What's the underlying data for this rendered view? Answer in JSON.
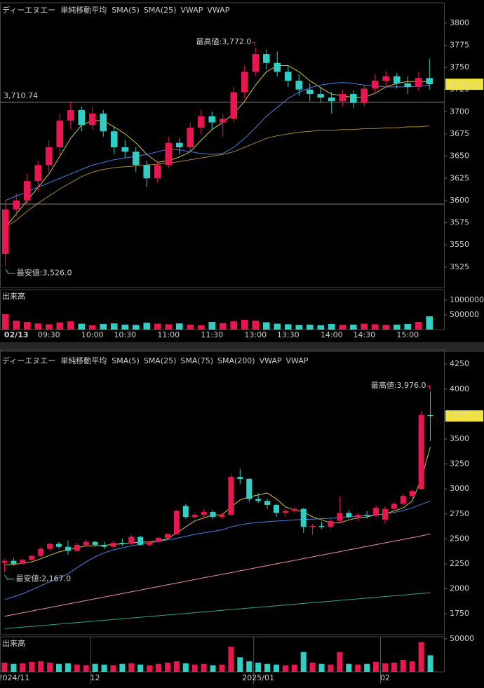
{
  "chart_data": [
    {
      "type": "candlestick",
      "title": "ディーエヌエー",
      "subtitle": "単純移動平均",
      "up_color": "#e8174f",
      "down_color": "#2fcfc6",
      "categories": [
        null,
        "02/13",
        null,
        null,
        "09:30",
        null,
        null,
        null,
        "10:00",
        null,
        null,
        "10:30",
        null,
        null,
        null,
        "11:00",
        null,
        null,
        null,
        "11:30",
        null,
        null,
        null,
        "13:00",
        null,
        null,
        "13:30",
        null,
        null,
        null,
        "14:00",
        null,
        null,
        "14:30",
        null,
        null,
        null,
        "15:00",
        null,
        null
      ],
      "open": [
        3540,
        3590,
        3600,
        3622,
        3640,
        3660,
        3690,
        3702,
        3685,
        3698,
        3678,
        3660,
        3655,
        3640,
        3625,
        3640,
        3665,
        3660,
        3682,
        3695,
        3688,
        3692,
        3722,
        3745,
        3765,
        3755,
        3745,
        3735,
        3725,
        3720,
        3716,
        3712,
        3720,
        3710,
        3726,
        3735,
        3740,
        3732,
        3728,
        3738
      ],
      "high": [
        3600,
        3608,
        3630,
        3645,
        3668,
        3698,
        3712,
        3706,
        3705,
        3702,
        3683,
        3668,
        3660,
        3645,
        3645,
        3672,
        3670,
        3688,
        3702,
        3700,
        3698,
        3728,
        3752,
        3772,
        3770,
        3768,
        3752,
        3742,
        3732,
        3728,
        3722,
        3725,
        3724,
        3730,
        3742,
        3746,
        3744,
        3740,
        3745,
        3760
      ],
      "low": [
        3526,
        3582,
        3595,
        3610,
        3632,
        3650,
        3680,
        3678,
        3680,
        3672,
        3652,
        3648,
        3632,
        3615,
        3620,
        3636,
        3652,
        3655,
        3675,
        3680,
        3672,
        3688,
        3715,
        3740,
        3748,
        3740,
        3728,
        3718,
        3712,
        3710,
        3698,
        3706,
        3704,
        3706,
        3720,
        3728,
        3726,
        3720,
        3724,
        3725
      ],
      "close": [
        3590,
        3600,
        3622,
        3640,
        3660,
        3690,
        3702,
        3685,
        3698,
        3678,
        3660,
        3655,
        3640,
        3625,
        3640,
        3665,
        3660,
        3682,
        3695,
        3688,
        3692,
        3722,
        3745,
        3765,
        3755,
        3745,
        3735,
        3725,
        3720,
        3716,
        3712,
        3720,
        3710,
        3726,
        3735,
        3740,
        3732,
        3728,
        3738,
        3731
      ],
      "indicators": [
        {
          "name": "SMA(5)",
          "color": "#d4c53a",
          "values": [
            3570,
            3585,
            3600,
            3615,
            3630,
            3650,
            3670,
            3685,
            3690,
            3690,
            3683,
            3675,
            3665,
            3652,
            3643,
            3645,
            3649,
            3655,
            3668,
            3680,
            3688,
            3698,
            3712,
            3730,
            3745,
            3752,
            3752,
            3745,
            3735,
            3727,
            3720,
            3718,
            3716,
            3716,
            3721,
            3728,
            3732,
            3734,
            3734,
            3734
          ]
        },
        {
          "name": "SMA(25)",
          "color": "#3c86e8",
          "values": [
            3600,
            3605,
            3610,
            3615,
            3620,
            3625,
            3630,
            3635,
            3640,
            3643,
            3646,
            3648,
            3650,
            3652,
            3655,
            3658,
            3657,
            3655,
            3653,
            3652,
            3653,
            3660,
            3670,
            3682,
            3695,
            3705,
            3715,
            3722,
            3727,
            3730,
            3732,
            3733,
            3732,
            3730,
            3729,
            3728,
            3728,
            3728,
            3729,
            3730
          ]
        },
        {
          "name": "VWAP",
          "color": "#e6e6e6"
        },
        {
          "name": "VWAP",
          "color": "#a8862a",
          "values": [
            3570,
            3578,
            3588,
            3597,
            3605,
            3613,
            3620,
            3627,
            3632,
            3635,
            3637,
            3638,
            3639,
            3640,
            3641,
            3642,
            3644,
            3646,
            3648,
            3650,
            3652,
            3655,
            3660,
            3665,
            3670,
            3673,
            3675,
            3677,
            3678,
            3679,
            3679,
            3680,
            3680,
            3681,
            3681,
            3682,
            3682,
            3683,
            3683,
            3684
          ]
        }
      ],
      "ylim": [
        3502,
        3818
      ],
      "yticks": [
        3525,
        3550,
        3575,
        3600,
        3625,
        3650,
        3675,
        3700,
        3725,
        3750,
        3775,
        3800
      ],
      "hlines": [
        {
          "value": 3710.74,
          "label": "3,710.74"
        },
        {
          "value": 3596
        }
      ],
      "high_label": "最高値:3,772.0",
      "low_label": "最安値:3,526.0",
      "last_price": {
        "value": 3731,
        "label": "3,731.0"
      },
      "volume": {
        "label": "出来高",
        "ylim": [
          0,
          1350000
        ],
        "yticks": [
          500000,
          1000000
        ],
        "values": [
          520000,
          300000,
          260000,
          210000,
          180000,
          240000,
          280000,
          200000,
          150000,
          190000,
          210000,
          170000,
          160000,
          230000,
          200000,
          180000,
          210000,
          170000,
          150000,
          260000,
          220000,
          280000,
          330000,
          300000,
          250000,
          200000,
          180000,
          160000,
          170000,
          150000,
          190000,
          160000,
          170000,
          200000,
          180000,
          160000,
          170000,
          190000,
          260000,
          450000
        ]
      }
    },
    {
      "type": "candlestick",
      "title": "ディーエヌエー",
      "subtitle": "単純移動平均",
      "up_color": "#e8174f",
      "down_color": "#2fcfc6",
      "categories": [
        null,
        "2024/11",
        null,
        null,
        null,
        null,
        null,
        null,
        null,
        null,
        "12",
        null,
        null,
        null,
        null,
        null,
        null,
        null,
        null,
        null,
        null,
        null,
        null,
        null,
        null,
        null,
        null,
        null,
        "2025/01",
        null,
        null,
        null,
        null,
        null,
        null,
        null,
        null,
        null,
        null,
        null,
        null,
        null,
        "02",
        null,
        null,
        null,
        null,
        null
      ],
      "open": [
        2260,
        2280,
        2250,
        2290,
        2330,
        2400,
        2450,
        2420,
        2380,
        2440,
        2470,
        2440,
        2420,
        2460,
        2450,
        2520,
        2440,
        2470,
        2510,
        2550,
        2830,
        2720,
        2740,
        2770,
        2720,
        2740,
        3120,
        3100,
        2900,
        2880,
        2840,
        2760,
        2780,
        2800,
        2620,
        2630,
        2620,
        2680,
        2760,
        2720,
        2740,
        2730,
        2690,
        2800,
        2850,
        2930,
        3000,
        3740
      ],
      "high": [
        2300,
        2310,
        2300,
        2340,
        2420,
        2460,
        2470,
        2480,
        2460,
        2490,
        2480,
        2470,
        2480,
        2500,
        2540,
        2530,
        2480,
        2520,
        2560,
        2790,
        2850,
        2760,
        2800,
        2790,
        2760,
        3150,
        3200,
        3110,
        2960,
        2900,
        2850,
        2800,
        2820,
        2810,
        2650,
        2670,
        2700,
        2930,
        2790,
        2760,
        2780,
        2840,
        2830,
        2870,
        2950,
        3000,
        3780,
        3976
      ],
      "low": [
        2167,
        2230,
        2240,
        2280,
        2320,
        2380,
        2400,
        2340,
        2370,
        2420,
        2420,
        2400,
        2410,
        2430,
        2440,
        2430,
        2420,
        2460,
        2500,
        2540,
        2700,
        2700,
        2720,
        2700,
        2700,
        2730,
        3050,
        2870,
        2860,
        2800,
        2720,
        2720,
        2760,
        2560,
        2540,
        2600,
        2600,
        2660,
        2700,
        2680,
        2700,
        2720,
        2650,
        2780,
        2840,
        2900,
        2990,
        3480
      ],
      "close": [
        2280,
        2250,
        2290,
        2330,
        2400,
        2450,
        2420,
        2380,
        2440,
        2470,
        2440,
        2420,
        2460,
        2450,
        2520,
        2440,
        2470,
        2510,
        2550,
        2780,
        2720,
        2740,
        2770,
        2720,
        2740,
        3120,
        3100,
        2900,
        2880,
        2840,
        2760,
        2780,
        2800,
        2620,
        2630,
        2620,
        2680,
        2760,
        2720,
        2740,
        2730,
        2810,
        2800,
        2850,
        2930,
        2980,
        3740,
        3731
      ],
      "indicators": [
        {
          "name": "SMA(5)",
          "color": "#d4c53a",
          "values": [
            2240,
            2245,
            2255,
            2270,
            2300,
            2335,
            2370,
            2390,
            2410,
            2430,
            2430,
            2435,
            2445,
            2450,
            2460,
            2465,
            2470,
            2480,
            2500,
            2560,
            2620,
            2680,
            2710,
            2740,
            2740,
            2820,
            2890,
            2920,
            2940,
            2960,
            2900,
            2820,
            2790,
            2770,
            2720,
            2690,
            2660,
            2660,
            2690,
            2710,
            2720,
            2740,
            2750,
            2780,
            2810,
            2880,
            3100,
            3420
          ]
        },
        {
          "name": "SMA(25)",
          "color": "#3c86e8",
          "values": [
            1890,
            1920,
            1950,
            1990,
            2030,
            2070,
            2110,
            2150,
            2210,
            2270,
            2320,
            2360,
            2390,
            2410,
            2430,
            2445,
            2460,
            2475,
            2490,
            2505,
            2525,
            2545,
            2560,
            2575,
            2590,
            2620,
            2640,
            2655,
            2665,
            2672,
            2678,
            2684,
            2690,
            2695,
            2698,
            2702,
            2706,
            2712,
            2718,
            2725,
            2732,
            2740,
            2750,
            2765,
            2785,
            2810,
            2845,
            2880
          ]
        },
        {
          "name": "SMA(75)",
          "color": "#f08ca0",
          "values": [
            1725,
            1742,
            1760,
            1777,
            1795,
            1812,
            1830,
            1847,
            1865,
            1882,
            1900,
            1917,
            1935,
            1952,
            1970,
            1987,
            2005,
            2022,
            2040,
            2057,
            2075,
            2092,
            2110,
            2127,
            2145,
            2162,
            2180,
            2197,
            2215,
            2232,
            2250,
            2267,
            2285,
            2302,
            2320,
            2337,
            2355,
            2372,
            2390,
            2407,
            2425,
            2442,
            2460,
            2477,
            2495,
            2512,
            2530,
            2550
          ]
        },
        {
          "name": "SMA(200)",
          "color": "#2aa888",
          "values": [
            1600,
            1608,
            1615,
            1623,
            1631,
            1638,
            1646,
            1654,
            1661,
            1669,
            1677,
            1684,
            1692,
            1700,
            1707,
            1715,
            1723,
            1730,
            1738,
            1746,
            1753,
            1761,
            1769,
            1776,
            1784,
            1792,
            1799,
            1807,
            1815,
            1822,
            1830,
            1838,
            1845,
            1853,
            1861,
            1868,
            1876,
            1884,
            1891,
            1899,
            1907,
            1914,
            1922,
            1930,
            1937,
            1945,
            1953,
            1960
          ]
        },
        {
          "name": "VWAP",
          "color": "#e6e6e6"
        },
        {
          "name": "VWAP",
          "color": "#e0502a"
        }
      ],
      "ylim": [
        1540,
        4350
      ],
      "yticks": [
        1750,
        2000,
        2250,
        2500,
        2750,
        3000,
        3250,
        3500,
        3750,
        4000,
        4250
      ],
      "high_label": "最高値:3,976.0",
      "low_label": "最安値:2,167.0",
      "last_price": {
        "value": 3731,
        "label": "3,731.0"
      },
      "volume": {
        "label": "出来高",
        "ylim": [
          0,
          53000
        ],
        "yticks": [
          50000
        ],
        "values": [
          14000,
          12000,
          13000,
          15000,
          16000,
          14000,
          12000,
          13000,
          11000,
          10000,
          12000,
          11000,
          10000,
          12000,
          13000,
          11000,
          10000,
          12000,
          14000,
          16000,
          13000,
          11000,
          12000,
          10000,
          11000,
          38000,
          22000,
          16000,
          14000,
          12000,
          11000,
          10000,
          11000,
          30000,
          14000,
          12000,
          11000,
          30000,
          12000,
          11000,
          12000,
          15000,
          13000,
          14000,
          18000,
          16000,
          45000,
          25000
        ]
      }
    }
  ]
}
